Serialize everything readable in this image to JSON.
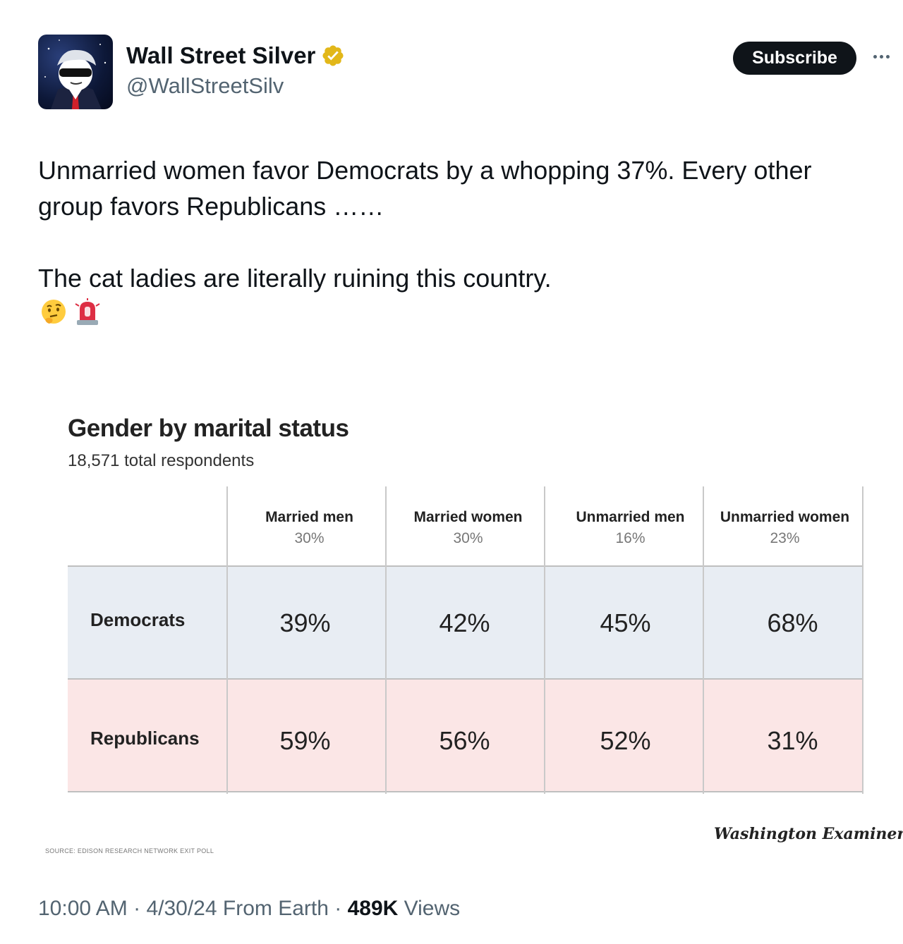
{
  "author": {
    "name": "Wall Street Silver",
    "handle": "@WallStreetSilv",
    "verified_badge_icon": "verified-badge-icon",
    "badge_color": "#e2b719"
  },
  "header": {
    "subscribe_label": "Subscribe",
    "more_icon": "more-dots-icon"
  },
  "tweet": {
    "text": "Unmarried women favor Democrats by a whopping 37%. Every other group favors Republicans ……\n\nThe cat ladies are literally ruining this country.",
    "emojis": [
      "thinking-face-icon",
      "police-light-icon"
    ]
  },
  "chart_image": {
    "title": "Gender by marital status",
    "subtitle": "18,571 total respondents",
    "source": "SOURCE: EDISON RESEARCH NETWORK EXIT POLL",
    "publisher": "Washington Examiner",
    "colors": {
      "democrats_row": "#e8edf3",
      "republicans_row": "#fbe6e6"
    },
    "columns": [
      {
        "label": "Married men",
        "share": "30%"
      },
      {
        "label": "Married women",
        "share": "30%"
      },
      {
        "label": "Unmarried men",
        "share": "16%"
      },
      {
        "label": "Unmarried women",
        "share": "23%"
      }
    ],
    "rows": [
      {
        "label": "Democrats",
        "values": [
          "39%",
          "42%",
          "45%",
          "68%"
        ]
      },
      {
        "label": "Republicans",
        "values": [
          "59%",
          "56%",
          "52%",
          "31%"
        ]
      }
    ]
  },
  "footer": {
    "time": "10:00 AM",
    "date": "4/30/24",
    "source": "From Earth",
    "views_count": "489K",
    "views_label": "Views"
  }
}
